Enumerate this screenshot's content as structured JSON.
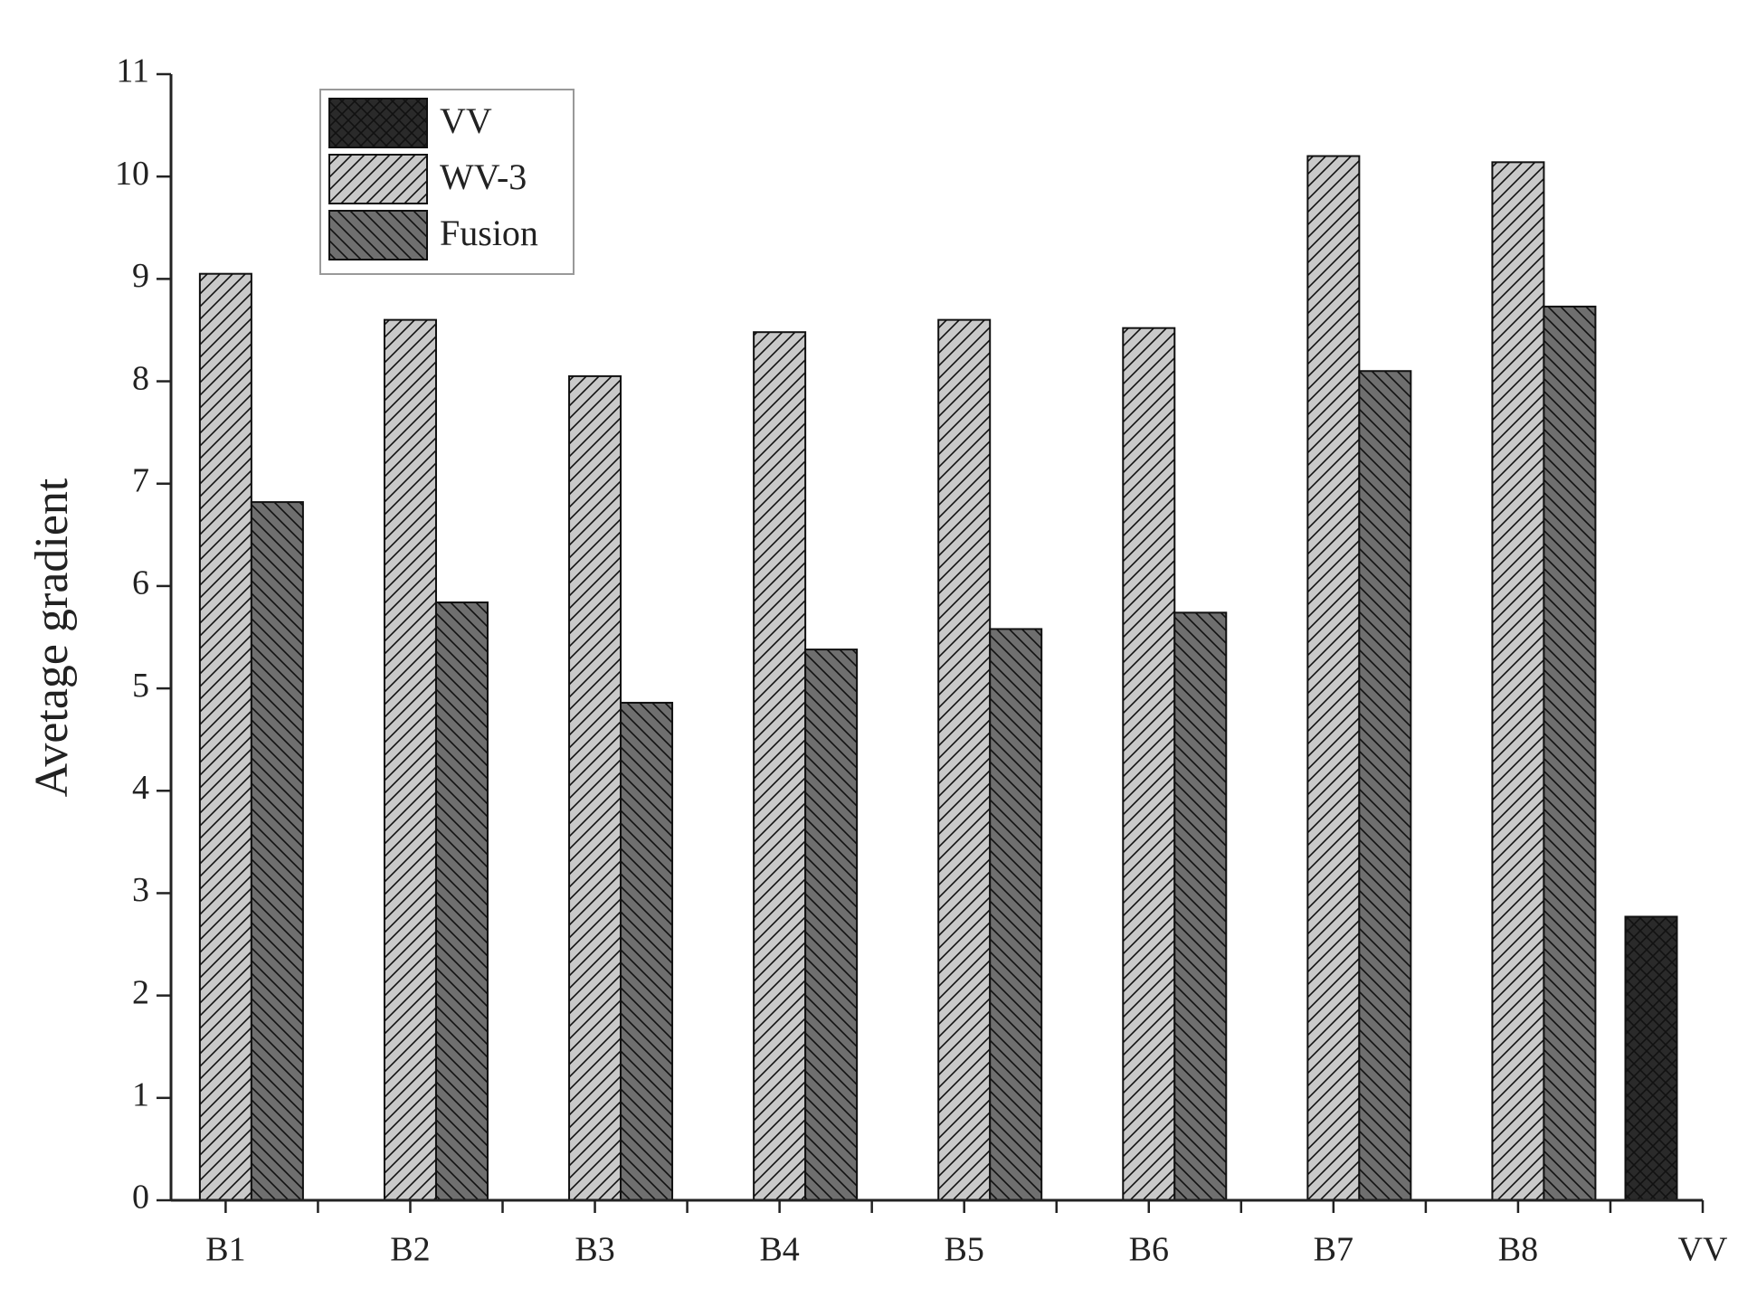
{
  "chart_data": {
    "type": "bar",
    "y_label": "Avetage gradient",
    "categories": [
      "B1",
      "B2",
      "B3",
      "B4",
      "B5",
      "B6",
      "B7",
      "B8",
      "VV"
    ],
    "series": [
      {
        "name": "VV",
        "color": "#2a2a2a",
        "values": [
          null,
          null,
          null,
          null,
          null,
          null,
          null,
          null,
          2.77
        ]
      },
      {
        "name": "WV-3",
        "color": "#c9c9c9",
        "values": [
          9.05,
          8.6,
          8.05,
          8.48,
          8.6,
          8.52,
          10.2,
          10.14,
          null
        ]
      },
      {
        "name": "Fusion",
        "color": "#6f6f6f",
        "values": [
          6.82,
          5.84,
          4.86,
          5.38,
          5.58,
          5.74,
          8.1,
          8.73,
          null
        ]
      }
    ],
    "ylim": [
      0,
      11
    ],
    "yticks": [
      0,
      1,
      2,
      3,
      4,
      5,
      6,
      7,
      8,
      9,
      10,
      11
    ],
    "legend": "upper left"
  }
}
